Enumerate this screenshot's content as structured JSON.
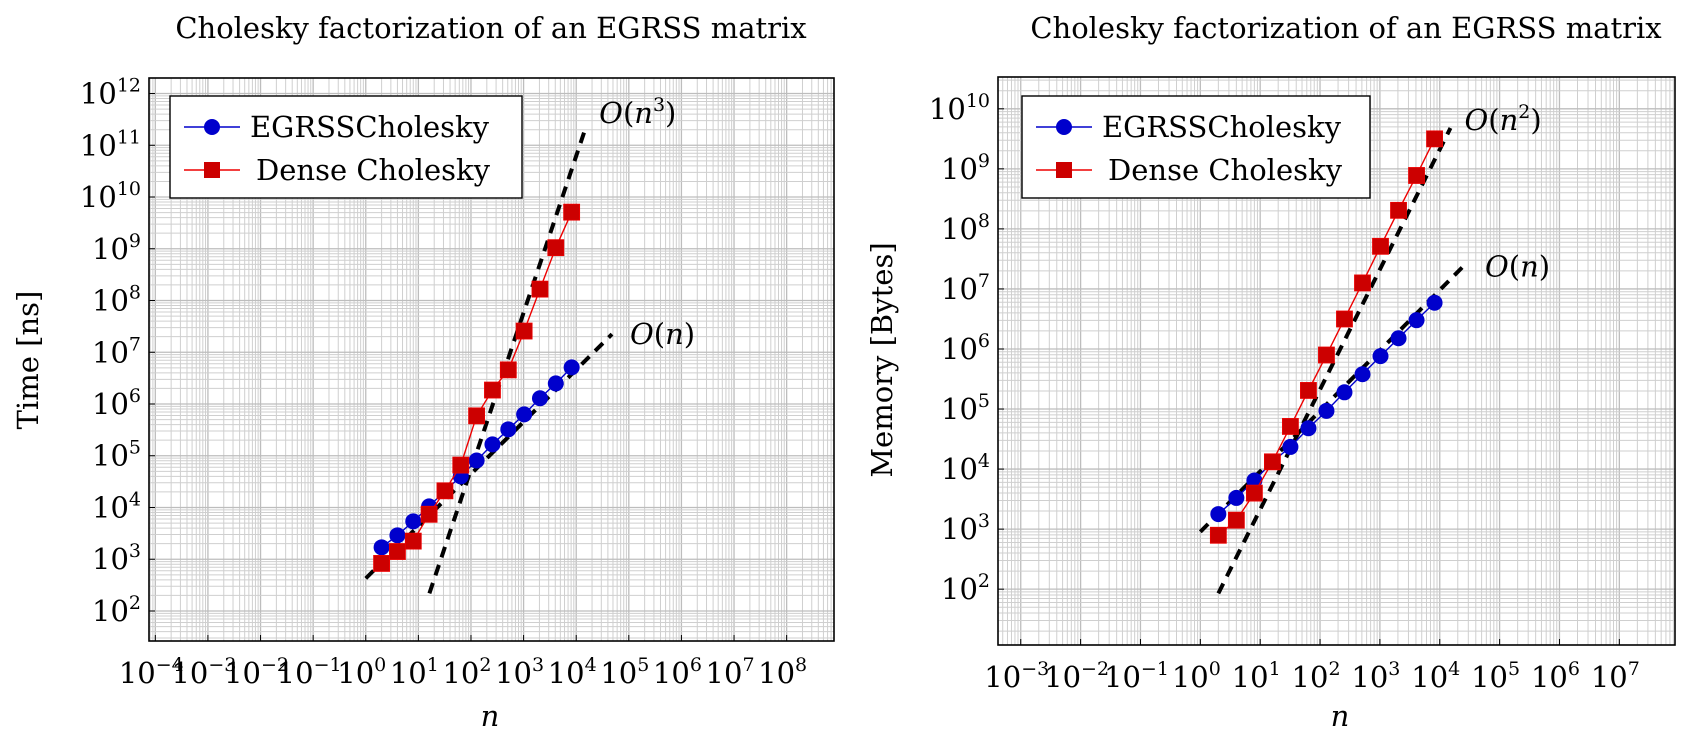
{
  "chart_data": [
    {
      "type": "line",
      "title": "Cholesky factorization of an EGRSS matrix",
      "xlabel": "n",
      "ylabel": "Time [ns]",
      "xscale": "log",
      "yscale": "log",
      "xlim_log10": [
        -4.12,
        8.9
      ],
      "ylim_log10": [
        1.42,
        12.3
      ],
      "grid": true,
      "legend_position": "top-left",
      "xticks": [
        {
          "base": "10",
          "exp": "−4",
          "log": -4
        },
        {
          "base": "10",
          "exp": "−3",
          "log": -3
        },
        {
          "base": "10",
          "exp": "−2",
          "log": -2
        },
        {
          "base": "10",
          "exp": "−1",
          "log": -1
        },
        {
          "base": "10",
          "exp": "0",
          "log": 0
        },
        {
          "base": "10",
          "exp": "1",
          "log": 1
        },
        {
          "base": "10",
          "exp": "2",
          "log": 2
        },
        {
          "base": "10",
          "exp": "3",
          "log": 3
        },
        {
          "base": "10",
          "exp": "4",
          "log": 4
        },
        {
          "base": "10",
          "exp": "5",
          "log": 5
        },
        {
          "base": "10",
          "exp": "6",
          "log": 6
        },
        {
          "base": "10",
          "exp": "7",
          "log": 7
        },
        {
          "base": "10",
          "exp": "8",
          "log": 8
        }
      ],
      "yticks": [
        {
          "base": "10",
          "exp": "2",
          "log": 2
        },
        {
          "base": "10",
          "exp": "3",
          "log": 3
        },
        {
          "base": "10",
          "exp": "4",
          "log": 4
        },
        {
          "base": "10",
          "exp": "5",
          "log": 5
        },
        {
          "base": "10",
          "exp": "6",
          "log": 6
        },
        {
          "base": "10",
          "exp": "7",
          "log": 7
        },
        {
          "base": "10",
          "exp": "8",
          "log": 8
        },
        {
          "base": "10",
          "exp": "9",
          "log": 9
        },
        {
          "base": "10",
          "exp": "10",
          "log": 10
        },
        {
          "base": "10",
          "exp": "11",
          "log": 11
        },
        {
          "base": "10",
          "exp": "12",
          "log": 12
        }
      ],
      "x": [
        2,
        4,
        8,
        16,
        32,
        64,
        128,
        256,
        512,
        1024,
        2048,
        4096,
        8192
      ],
      "series": [
        {
          "name": "EGRSSCholesky",
          "color": "#0000cc",
          "marker": "circle",
          "values": [
            1700,
            2900,
            5400,
            10500,
            21000,
            40000,
            81000,
            166000,
            324000,
            630000,
            1290000,
            2500000,
            5100000
          ]
        },
        {
          "name": "Dense Cholesky",
          "color": "#cc0000",
          "marker": "square",
          "values": [
            830,
            1410,
            2240,
            7400,
            21000,
            66000,
            590000,
            1860000,
            4570000,
            25700000,
            166000000,
            1050000000,
            5100000000
          ]
        }
      ],
      "reference_lines": [
        {
          "label": "O(n)",
          "label_base": "O(n)",
          "label_sup": "",
          "x": [
            1,
            47900
          ],
          "y": [
            427,
            22400000
          ]
        },
        {
          "label": "O(n^3)",
          "label_base": "O(n",
          "label_sup": "3",
          "label_close": ")",
          "x": [
            16.2,
            14800
          ],
          "y": [
            219,
            204000000000
          ]
        }
      ]
    },
    {
      "type": "line",
      "title": "Cholesky factorization of an EGRSS matrix",
      "xlabel": "n",
      "ylabel": "Memory [Bytes]",
      "xscale": "log",
      "yscale": "log",
      "xlim_log10": [
        -3.38,
        7.93
      ],
      "ylim_log10": [
        1.07,
        10.53
      ],
      "grid": true,
      "legend_position": "top-left",
      "xticks": [
        {
          "base": "10",
          "exp": "−3",
          "log": -3
        },
        {
          "base": "10",
          "exp": "−2",
          "log": -2
        },
        {
          "base": "10",
          "exp": "−1",
          "log": -1
        },
        {
          "base": "10",
          "exp": "0",
          "log": 0
        },
        {
          "base": "10",
          "exp": "1",
          "log": 1
        },
        {
          "base": "10",
          "exp": "2",
          "log": 2
        },
        {
          "base": "10",
          "exp": "3",
          "log": 3
        },
        {
          "base": "10",
          "exp": "4",
          "log": 4
        },
        {
          "base": "10",
          "exp": "5",
          "log": 5
        },
        {
          "base": "10",
          "exp": "6",
          "log": 6
        },
        {
          "base": "10",
          "exp": "7",
          "log": 7
        }
      ],
      "yticks": [
        {
          "base": "10",
          "exp": "2",
          "log": 2
        },
        {
          "base": "10",
          "exp": "3",
          "log": 3
        },
        {
          "base": "10",
          "exp": "4",
          "log": 4
        },
        {
          "base": "10",
          "exp": "5",
          "log": 5
        },
        {
          "base": "10",
          "exp": "6",
          "log": 6
        },
        {
          "base": "10",
          "exp": "7",
          "log": 7
        },
        {
          "base": "10",
          "exp": "8",
          "log": 8
        },
        {
          "base": "10",
          "exp": "9",
          "log": 9
        },
        {
          "base": "10",
          "exp": "10",
          "log": 10
        }
      ],
      "x": [
        2,
        4,
        8,
        16,
        32,
        64,
        128,
        256,
        512,
        1024,
        2048,
        4096,
        8192
      ],
      "series": [
        {
          "name": "EGRSSCholesky",
          "color": "#0000cc",
          "marker": "circle",
          "values": [
            1780,
            3310,
            6460,
            13200,
            23400,
            47900,
            93300,
            190000,
            380000,
            760000,
            1510000,
            3020000,
            5890000
          ]
        },
        {
          "name": "Dense Cholesky",
          "color": "#cc0000",
          "marker": "square",
          "values": [
            790,
            1410,
            3980,
            13200,
            51300,
            204000,
            794000,
            3160000,
            12600000,
            51300000,
            204000000,
            776000000,
            3160000000
          ]
        }
      ],
      "reference_lines": [
        {
          "label": "O(n)",
          "label_base": "O(n)",
          "label_sup": "",
          "x": [
            1,
            28500
          ],
          "y": [
            902,
            27500000
          ]
        },
        {
          "label": "O(n^2)",
          "label_base": "O(n",
          "label_sup": "2",
          "label_close": ")",
          "x": [
            2,
            15100
          ],
          "y": [
            85,
            4790000000
          ]
        }
      ]
    }
  ]
}
